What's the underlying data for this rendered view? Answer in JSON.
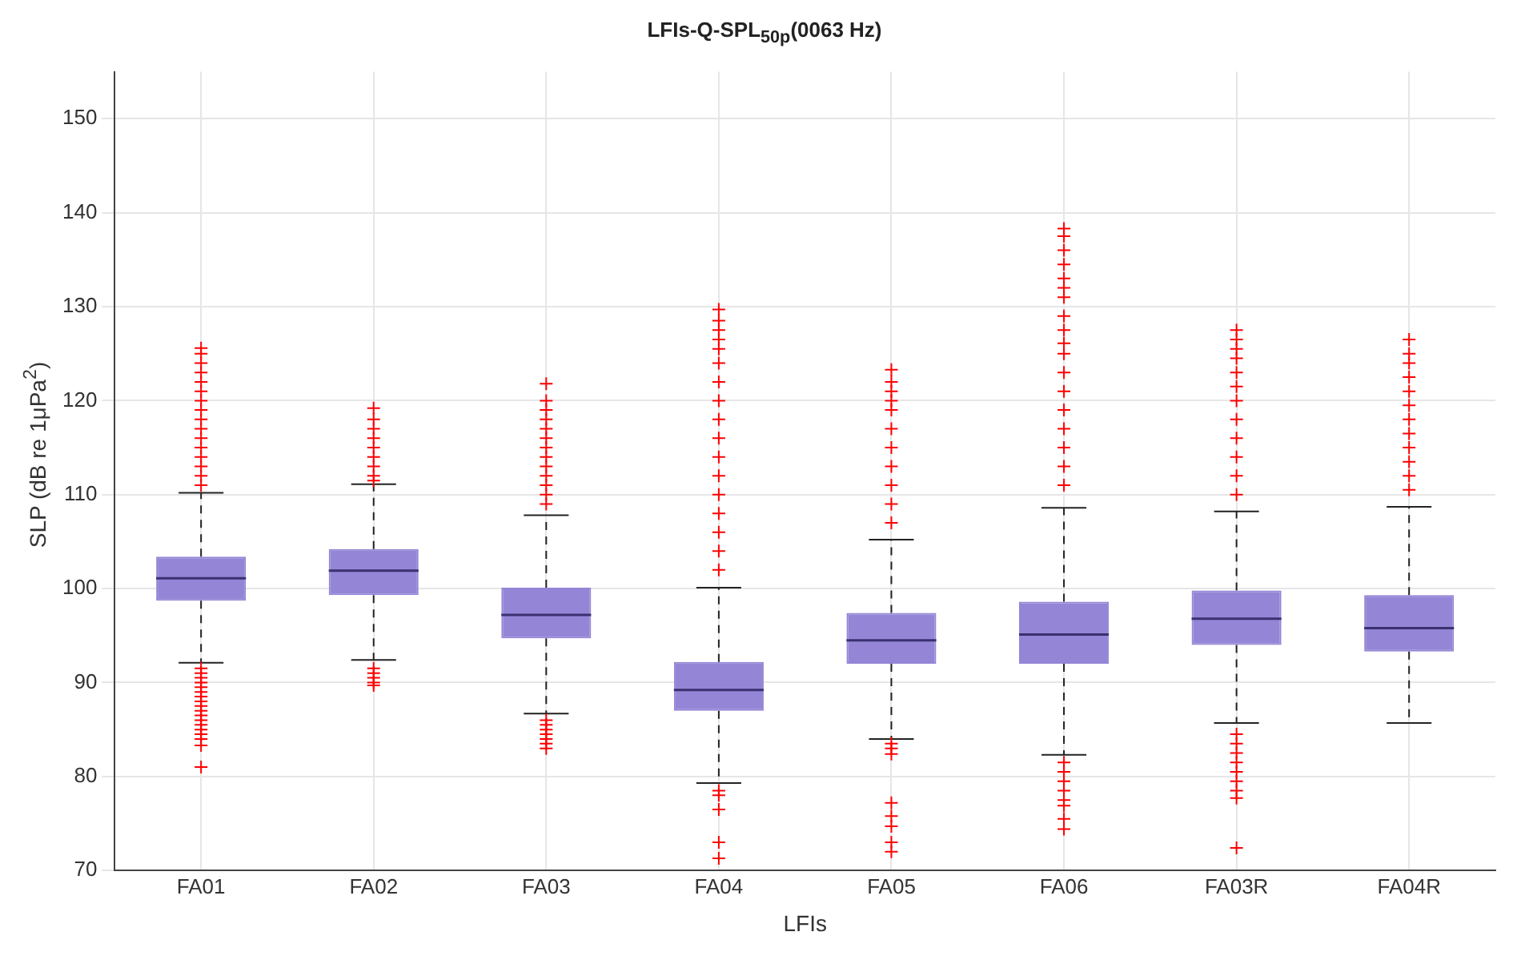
{
  "chart_data": {
    "type": "box",
    "title": "LFIs-Q-SPL$_{50p}$(0063 Hz)",
    "xlabel": "LFIs",
    "ylabel": "SLP (dB re 1μPa$^{2}$)",
    "categories": [
      "FA01",
      "FA02",
      "FA03",
      "FA04",
      "FA05",
      "FA06",
      "FA03R",
      "FA04R"
    ],
    "color": "#9485d6",
    "boxes": [
      {
        "low": 92.1,
        "q1": 98.7,
        "median": 101.1,
        "q3": 103.4,
        "high": 110.2,
        "outliers": [
          81,
          83.3,
          84,
          84.5,
          85,
          85.5,
          86,
          86.5,
          87,
          87.5,
          88,
          88.5,
          89,
          89.5,
          90,
          90.5,
          91,
          91.5,
          111,
          112,
          113,
          114,
          115,
          116,
          117,
          118,
          119,
          120,
          121,
          122,
          123,
          124,
          125,
          125.6
        ]
      },
      {
        "low": 92.4,
        "q1": 99.3,
        "median": 101.9,
        "q3": 104.2,
        "high": 111.1,
        "outliers": [
          89.7,
          90,
          90.5,
          91,
          91.5,
          111.5,
          112,
          113,
          114,
          115,
          116,
          117,
          118,
          119.2
        ]
      },
      {
        "low": 86.7,
        "q1": 94.7,
        "median": 97.2,
        "q3": 100.1,
        "high": 107.8,
        "outliers": [
          83,
          83.5,
          84,
          84.5,
          85,
          85.5,
          86,
          109,
          110,
          111,
          112,
          113,
          114,
          115,
          116,
          117,
          118,
          119,
          120,
          121.8
        ]
      },
      {
        "low": 79.3,
        "q1": 87,
        "median": 89.2,
        "q3": 92.2,
        "high": 100.1,
        "outliers": [
          71.3,
          73,
          76.5,
          78,
          78.5,
          102,
          104,
          106,
          108,
          110,
          112,
          114,
          116,
          118,
          120,
          122,
          124,
          125.5,
          126.5,
          127.5,
          128.5,
          129.7
        ]
      },
      {
        "low": 84,
        "q1": 92,
        "median": 94.5,
        "q3": 97.4,
        "high": 105.2,
        "outliers": [
          72,
          73,
          74.7,
          75.8,
          77.2,
          82.4,
          83,
          83.5,
          107,
          109,
          111,
          113,
          115,
          117,
          119,
          120,
          121,
          122,
          123.3
        ]
      },
      {
        "low": 82.3,
        "q1": 92,
        "median": 95.1,
        "q3": 98.6,
        "high": 108.6,
        "outliers": [
          74.4,
          75.5,
          76.9,
          77.5,
          78.5,
          79.5,
          80.5,
          81.5,
          111,
          113,
          115,
          117,
          119,
          121,
          123,
          125,
          126.1,
          127.5,
          129,
          131,
          132,
          133,
          134.5,
          136,
          137.5,
          138.3
        ]
      },
      {
        "low": 85.7,
        "q1": 94,
        "median": 96.8,
        "q3": 99.8,
        "high": 108.2,
        "outliers": [
          72.4,
          77.7,
          78.5,
          79.5,
          80.5,
          81.5,
          82.5,
          83.5,
          84.5,
          110,
          112,
          114,
          116,
          118,
          120,
          121.5,
          123,
          124.5,
          125.5,
          126.5,
          127.5
        ]
      },
      {
        "low": 85.7,
        "q1": 93.3,
        "median": 95.8,
        "q3": 99.3,
        "high": 108.7,
        "outliers": [
          110.5,
          112,
          113.5,
          115,
          116.5,
          118,
          119.5,
          121,
          122.5,
          124,
          125,
          126.5
        ]
      }
    ],
    "ylim": [
      70,
      155
    ],
    "yticks": [
      70,
      80,
      90,
      100,
      110,
      120,
      130,
      140,
      150
    ],
    "grid": true,
    "legend": false,
    "marker": "cross"
  }
}
